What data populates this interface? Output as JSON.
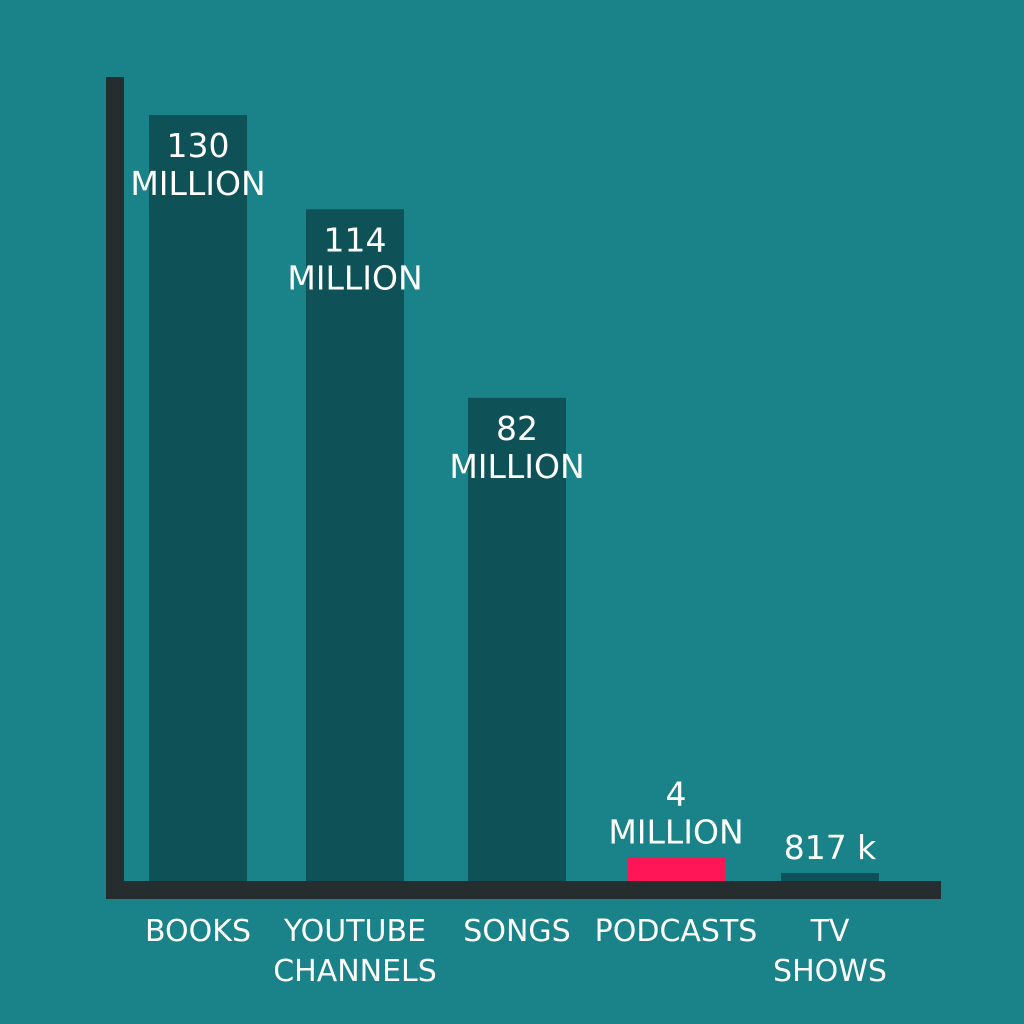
{
  "colors": {
    "background": "#1a8289",
    "bar": "#0e5257",
    "highlight_bar": "#ff1657",
    "axis": "#252d2f",
    "text": "#ffffff"
  },
  "chart_data": {
    "type": "bar",
    "title": "",
    "xlabel": "",
    "ylabel": "",
    "ylim": [
      0,
      130000000
    ],
    "grid": false,
    "legend": "none",
    "categories": [
      "BOOKS",
      "YOUTUBE CHANNELS",
      "SONGS",
      "PODCASTS",
      "TV SHOWS"
    ],
    "category_lines": [
      [
        "BOOKS"
      ],
      [
        "YOUTUBE",
        "CHANNELS"
      ],
      [
        "SONGS"
      ],
      [
        "PODCASTS"
      ],
      [
        "TV",
        "SHOWS"
      ]
    ],
    "values": [
      130000000,
      114000000,
      82000000,
      4000000,
      817000
    ],
    "data_labels": [
      [
        "130",
        "MILLION"
      ],
      [
        "114",
        "MILLION"
      ],
      [
        "82",
        "MILLION"
      ],
      [
        "4",
        "MILLION"
      ],
      [
        "817 k"
      ]
    ],
    "highlight_category": "PODCASTS"
  }
}
